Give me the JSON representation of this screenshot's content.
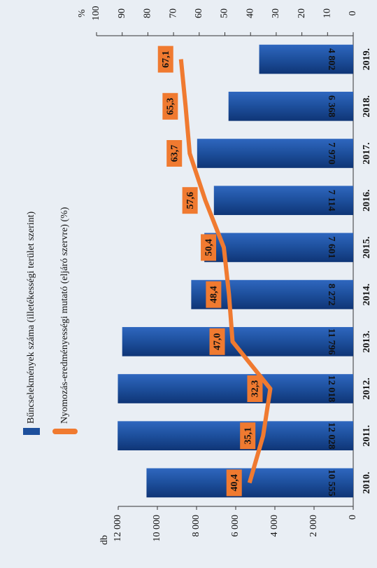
{
  "chart_data": {
    "type": "bar",
    "y_axis_label": "db",
    "y2_axis_label": "%",
    "categories": [
      "2010.",
      "2011.",
      "2012.",
      "2013.",
      "2014.",
      "2015.",
      "2016.",
      "2017.",
      "2018.",
      "2019."
    ],
    "series": [
      {
        "name": "Bűncselekmények száma (illetékességi terület szerint)",
        "type": "bar",
        "color": "#1d4f9c",
        "values": [
          10555,
          12028,
          12018,
          11796,
          8272,
          7601,
          7114,
          7970,
          6368,
          4802
        ],
        "value_labels": [
          "10 555",
          "12 028",
          "12 018",
          "11 796",
          "8 272",
          "7 601",
          "7 114",
          "7 970",
          "6 368",
          "4 802"
        ]
      },
      {
        "name": "Nyomozás-eredményességi mutató (eljáró szervre) (%)",
        "type": "line",
        "axis": "y2",
        "color": "#f07a30",
        "values": [
          40.4,
          35.1,
          32.3,
          47.0,
          48.4,
          50.4,
          57.6,
          63.7,
          65.3,
          67.1
        ],
        "value_labels": [
          "40,4",
          "35,1",
          "32,3",
          "47,0",
          "48,4",
          "50,4",
          "57,6",
          "63,7",
          "65,3",
          "67,1"
        ]
      }
    ],
    "ylim": [
      0,
      12000
    ],
    "yticks": [
      0,
      {
        "value": 2000,
        "label": "2 000"
      },
      {
        "value": 4000,
        "label": "4 000"
      },
      {
        "value": 6000,
        "label": "6 000"
      },
      {
        "value": 8000,
        "label": "8 000"
      },
      {
        "value": 10000,
        "label": "10 000"
      },
      {
        "value": 12000,
        "label": "12 000"
      }
    ],
    "y2lim": [
      0,
      100
    ],
    "y2ticks": [
      0,
      10,
      20,
      30,
      40,
      50,
      60,
      70,
      80,
      90,
      100
    ]
  }
}
